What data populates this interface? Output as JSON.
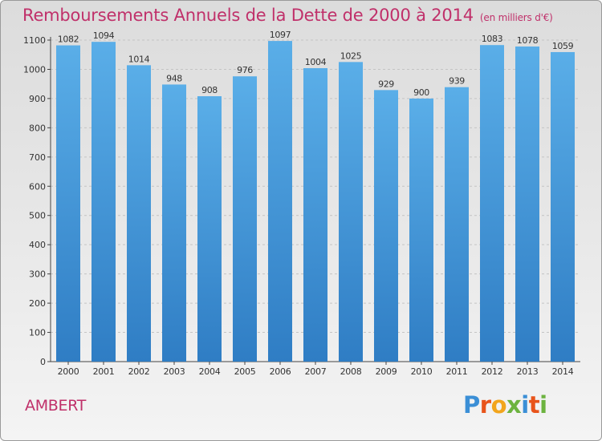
{
  "header": {
    "title": "Remboursements Annuels de la Dette de 2000 à 2014",
    "unit": "(en milliers d'€)"
  },
  "footer": {
    "city": "AMBERT",
    "logo_letters": [
      "P",
      "r",
      "o",
      "x",
      "i",
      "t",
      "i"
    ]
  },
  "colors": {
    "title": "#c0306a",
    "bar_top": "#5aaee8",
    "bar_bottom": "#2f7dc4",
    "logo": [
      "#3b8fd6",
      "#e8541b",
      "#f2a51d",
      "#6cb33f",
      "#3b8fd6",
      "#e8541b",
      "#6cb33f"
    ]
  },
  "chart_data": {
    "type": "bar",
    "title": "Remboursements Annuels de la Dette de 2000 à 2014",
    "xlabel": "",
    "ylabel": "",
    "categories": [
      "2000",
      "2001",
      "2002",
      "2003",
      "2004",
      "2005",
      "2006",
      "2007",
      "2008",
      "2009",
      "2010",
      "2011",
      "2012",
      "2013",
      "2014"
    ],
    "values": [
      1082,
      1094,
      1014,
      948,
      908,
      976,
      1097,
      1004,
      1025,
      929,
      900,
      939,
      1083,
      1078,
      1059
    ],
    "ylim": [
      0,
      1100
    ],
    "yticks": [
      0,
      100,
      200,
      300,
      400,
      500,
      600,
      700,
      800,
      900,
      1000,
      1100
    ],
    "grid": true,
    "legend": "none"
  }
}
